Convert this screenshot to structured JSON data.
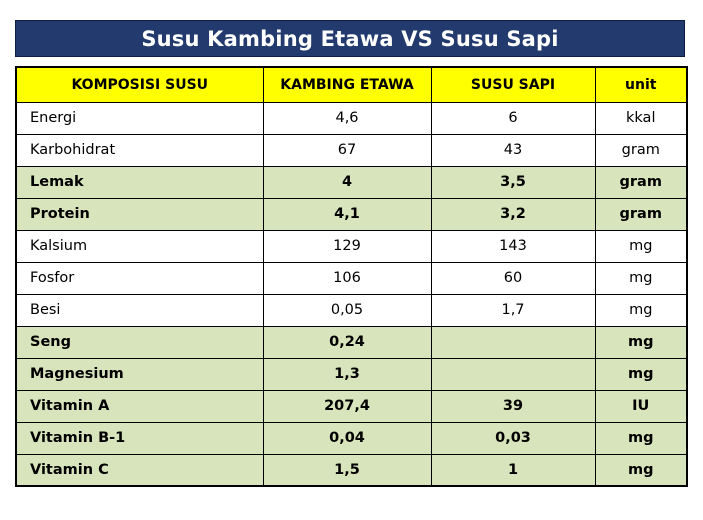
{
  "title": "Susu Kambing Etawa VS Susu Sapi",
  "colors": {
    "title_bg": "#223a6e",
    "header_bg": "#ffff00",
    "highlight_row_bg": "#d8e4bc"
  },
  "table": {
    "headers": [
      "KOMPOSISI SUSU",
      "KAMBING ETAWA",
      "SUSU SAPI",
      "unit"
    ],
    "rows": [
      {
        "name": "Energi",
        "kambing": "4,6",
        "sapi": "6",
        "unit": "kkal",
        "highlight": false
      },
      {
        "name": "Karbohidrat",
        "kambing": "67",
        "sapi": "43",
        "unit": "gram",
        "highlight": false
      },
      {
        "name": "Lemak",
        "kambing": "4",
        "sapi": "3,5",
        "unit": "gram",
        "highlight": true
      },
      {
        "name": "Protein",
        "kambing": "4,1",
        "sapi": "3,2",
        "unit": "gram",
        "highlight": true
      },
      {
        "name": "Kalsium",
        "kambing": "129",
        "sapi": "143",
        "unit": "mg",
        "highlight": false
      },
      {
        "name": "Fosfor",
        "kambing": "106",
        "sapi": "60",
        "unit": "mg",
        "highlight": false
      },
      {
        "name": "Besi",
        "kambing": "0,05",
        "sapi": "1,7",
        "unit": "mg",
        "highlight": false
      },
      {
        "name": "Seng",
        "kambing": "0,24",
        "sapi": "",
        "unit": "mg",
        "highlight": true
      },
      {
        "name": "Magnesium",
        "kambing": "1,3",
        "sapi": "",
        "unit": "mg",
        "highlight": true
      },
      {
        "name": "Vitamin A",
        "kambing": "207,4",
        "sapi": "39",
        "unit": "IU",
        "highlight": true
      },
      {
        "name": "Vitamin B-1",
        "kambing": "0,04",
        "sapi": "0,03",
        "unit": "mg",
        "highlight": true
      },
      {
        "name": "Vitamin C",
        "kambing": "1,5",
        "sapi": "1",
        "unit": "mg",
        "highlight": true
      }
    ]
  }
}
